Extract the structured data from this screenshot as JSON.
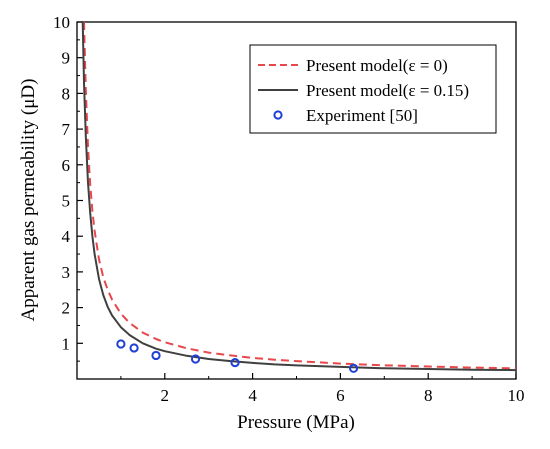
{
  "chart_data": {
    "type": "line",
    "xlabel": "Pressure (MPa)",
    "ylabel": "Apparent gas permeability (μD)",
    "xlim": [
      0,
      10
    ],
    "ylim": [
      0,
      10
    ],
    "xticks": [
      2,
      4,
      6,
      8,
      10
    ],
    "yticks": [
      1,
      2,
      3,
      4,
      5,
      6,
      7,
      8,
      9,
      10
    ],
    "grid": false,
    "legend_position": "top-right",
    "series": [
      {
        "name": "Present model(ε = 0)",
        "style": "dashed",
        "color": "#e8474b",
        "x": [
          0.16,
          0.2,
          0.25,
          0.3,
          0.35,
          0.4,
          0.5,
          0.6,
          0.7,
          0.8,
          1.0,
          1.2,
          1.5,
          1.8,
          2.0,
          2.5,
          3.0,
          3.5,
          4.0,
          4.5,
          5.0,
          6.0,
          7.0,
          8.0,
          9.0,
          10.0
        ],
        "values": [
          10.0,
          8.1,
          6.5,
          5.45,
          4.7,
          4.15,
          3.35,
          2.85,
          2.5,
          2.22,
          1.83,
          1.57,
          1.3,
          1.12,
          1.03,
          0.86,
          0.74,
          0.66,
          0.59,
          0.54,
          0.5,
          0.43,
          0.385,
          0.35,
          0.32,
          0.3
        ]
      },
      {
        "name": "Present model(ε = 0.15)",
        "style": "solid",
        "color": "#404040",
        "x": [
          0.13,
          0.16,
          0.2,
          0.25,
          0.3,
          0.35,
          0.4,
          0.5,
          0.6,
          0.7,
          0.8,
          1.0,
          1.2,
          1.5,
          1.8,
          2.0,
          2.5,
          3.0,
          3.5,
          4.0,
          4.5,
          5.0,
          6.0,
          7.0,
          8.0,
          9.0,
          10.0
        ],
        "values": [
          10.0,
          8.3,
          6.8,
          5.5,
          4.65,
          4.0,
          3.5,
          2.8,
          2.35,
          2.02,
          1.78,
          1.45,
          1.23,
          1.0,
          0.85,
          0.78,
          0.65,
          0.56,
          0.5,
          0.45,
          0.41,
          0.38,
          0.34,
          0.3,
          0.28,
          0.26,
          0.25
        ]
      },
      {
        "name": "Experiment [50]",
        "style": "markers",
        "color": "#1f3fd6",
        "x": [
          1.0,
          1.3,
          1.8,
          2.7,
          3.6,
          6.3
        ],
        "values": [
          0.98,
          0.87,
          0.66,
          0.56,
          0.46,
          0.3
        ]
      }
    ]
  }
}
